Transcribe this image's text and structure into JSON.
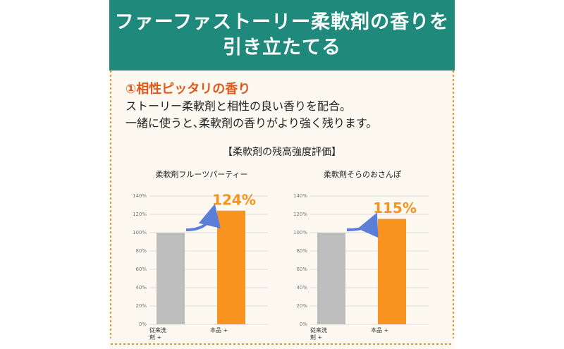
{
  "header": {
    "title_lines": [
      "ファーファストーリー柔軟剤の香りを",
      "引き立たてる"
    ]
  },
  "section": {
    "heading": "①相性ピッタリの香り",
    "body": [
      "ストーリー柔軟剤と相性の良い香りを配合。",
      "一緒に使うと､柔軟剤の香りがより強く残ります。"
    ]
  },
  "chart_heading": "【柔軟剤の残高強度評価】",
  "chart_data": [
    {
      "type": "bar",
      "title": "柔軟剤フルーツパーティー",
      "categories": [
        "従来洗剤 +",
        "本品 +"
      ],
      "values": [
        100,
        124
      ],
      "value_labels": [
        null,
        "124%"
      ],
      "colors": [
        "#bdbdbd",
        "#f7931e"
      ],
      "ylim": [
        0,
        140
      ],
      "yticks": [
        {
          "value": 0,
          "label": "0%"
        },
        {
          "value": 20,
          "label": "20%"
        },
        {
          "value": 40,
          "label": "40%"
        },
        {
          "value": 60,
          "label": "60%"
        },
        {
          "value": 80,
          "label": "80%"
        },
        {
          "value": 100,
          "label": "100%"
        },
        {
          "value": 120,
          "label": "120%"
        },
        {
          "value": 140,
          "label": "140%"
        }
      ],
      "grid": true
    },
    {
      "type": "bar",
      "title": "柔軟剤そらのおさんぽ",
      "categories": [
        "従来洗剤 +",
        "本品 +"
      ],
      "values": [
        100,
        115
      ],
      "value_labels": [
        null,
        "115%"
      ],
      "colors": [
        "#bdbdbd",
        "#f7931e"
      ],
      "ylim": [
        0,
        140
      ],
      "yticks": [
        {
          "value": 0,
          "label": "0%"
        },
        {
          "value": 20,
          "label": "20%"
        },
        {
          "value": 40,
          "label": "40%"
        },
        {
          "value": 60,
          "label": "60%"
        },
        {
          "value": 80,
          "label": "80%"
        },
        {
          "value": 100,
          "label": "100%"
        },
        {
          "value": 120,
          "label": "120%"
        },
        {
          "value": 140,
          "label": "140%"
        }
      ],
      "grid": true
    }
  ]
}
